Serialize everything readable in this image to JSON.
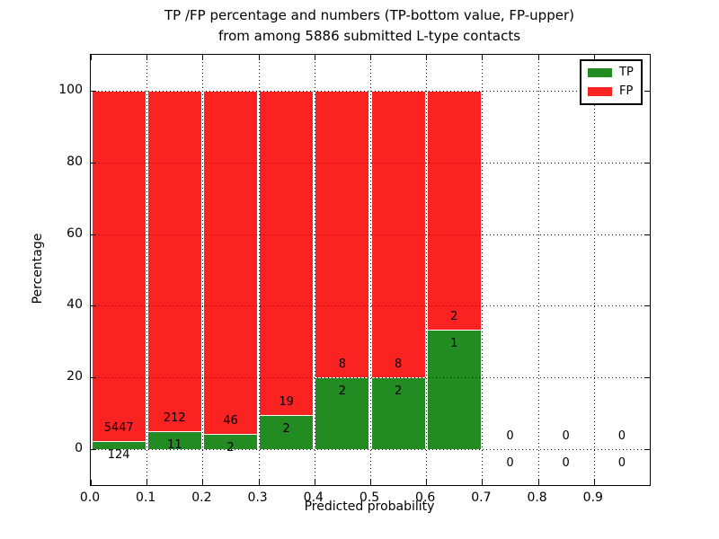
{
  "title": {
    "line1": "TP /FP percentage and numbers (TP-bottom value, FP-upper)",
    "line2": "from among 5886 submitted L-type contacts"
  },
  "axes": {
    "xlabel": "Predicted probability",
    "ylabel": "Percentage"
  },
  "legend": {
    "items": [
      {
        "label": "TP",
        "color": "#228b22"
      },
      {
        "label": "FP",
        "color": "#fb2222"
      }
    ]
  },
  "colors": {
    "tp": "#228b22",
    "fp": "#fb2222",
    "grid": "#000000",
    "background": "#ffffff",
    "segment_edge": "#ffffff"
  },
  "chart_data": {
    "type": "bar",
    "stacked": true,
    "title": "TP /FP percentage and numbers (TP-bottom value, FP-upper) from among 5886 submitted L-type contacts",
    "xlabel": "Predicted probability",
    "ylabel": "Percentage",
    "xlim": [
      0,
      1.0
    ],
    "ylim": [
      -10,
      110
    ],
    "xticks": [
      "0.0",
      "0.1",
      "0.2",
      "0.3",
      "0.4",
      "0.5",
      "0.6",
      "0.7",
      "0.8",
      "0.9"
    ],
    "xtick_values": [
      0.0,
      0.1,
      0.2,
      0.3,
      0.4,
      0.5,
      0.6,
      0.7,
      0.8,
      0.9
    ],
    "yticks": [
      0,
      20,
      40,
      60,
      80,
      100
    ],
    "grid": "dotted",
    "legend_position": "upper right",
    "total_submitted": 5886,
    "series": [
      {
        "name": "TP",
        "color": "#228b22"
      },
      {
        "name": "FP",
        "color": "#fb2222"
      }
    ],
    "bins": [
      {
        "x0": 0.0,
        "x1": 0.1,
        "tp": 124,
        "fp": 5447,
        "tp_pct": 2.23,
        "fp_pct": 97.77
      },
      {
        "x0": 0.1,
        "x1": 0.2,
        "tp": 11,
        "fp": 212,
        "tp_pct": 4.93,
        "fp_pct": 95.07
      },
      {
        "x0": 0.2,
        "x1": 0.3,
        "tp": 2,
        "fp": 46,
        "tp_pct": 4.17,
        "fp_pct": 95.83
      },
      {
        "x0": 0.3,
        "x1": 0.4,
        "tp": 2,
        "fp": 19,
        "tp_pct": 9.52,
        "fp_pct": 90.48
      },
      {
        "x0": 0.4,
        "x1": 0.5,
        "tp": 2,
        "fp": 8,
        "tp_pct": 20.0,
        "fp_pct": 80.0
      },
      {
        "x0": 0.5,
        "x1": 0.6,
        "tp": 2,
        "fp": 8,
        "tp_pct": 20.0,
        "fp_pct": 80.0
      },
      {
        "x0": 0.6,
        "x1": 0.7,
        "tp": 1,
        "fp": 2,
        "tp_pct": 33.33,
        "fp_pct": 66.67
      },
      {
        "x0": 0.7,
        "x1": 0.8,
        "tp": 0,
        "fp": 0,
        "tp_pct": 0,
        "fp_pct": 0
      },
      {
        "x0": 0.8,
        "x1": 0.9,
        "tp": 0,
        "fp": 0,
        "tp_pct": 0,
        "fp_pct": 0
      },
      {
        "x0": 0.9,
        "x1": 1.0,
        "tp": 0,
        "fp": 0,
        "tp_pct": 0,
        "fp_pct": 0
      }
    ]
  }
}
